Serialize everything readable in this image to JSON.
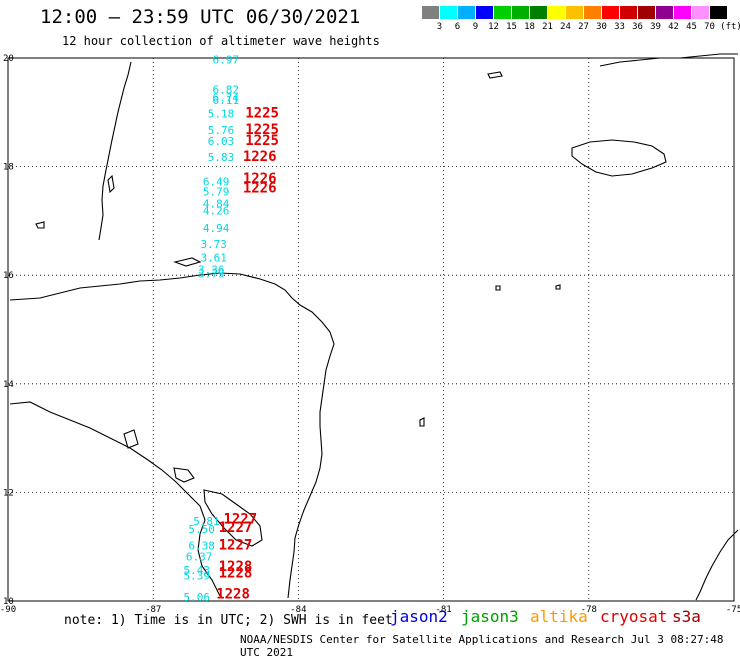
{
  "title": "12:00 – 23:59 UTC 06/30/2021",
  "subtitle": "12 hour collection of altimeter wave heights",
  "legend": {
    "unit": "(ft)",
    "colors": [
      "#808080",
      "#00ffff",
      "#00b0ff",
      "#0000ff",
      "#00d000",
      "#00b000",
      "#008000",
      "#ffff00",
      "#ffc000",
      "#ff8000",
      "#ff0000",
      "#d00000",
      "#a00000",
      "#900090",
      "#ff00ff",
      "#ff90ff",
      "#000000"
    ],
    "labels": [
      "3",
      "6",
      "9",
      "12",
      "15",
      "18",
      "21",
      "24",
      "27",
      "30",
      "33",
      "36",
      "39",
      "42",
      "45",
      "70"
    ]
  },
  "map": {
    "lon_min": -90,
    "lon_max": -75,
    "lat_min": 10,
    "lat_max": 20,
    "lon_ticks": [
      "-90",
      "-87",
      "-84",
      "-81",
      "-78",
      "-75"
    ],
    "lat_ticks": [
      "20",
      "18",
      "16",
      "14",
      "12",
      "10"
    ],
    "wave_color": "#00d8e0",
    "pass_color": "#e00000",
    "wave_heights": [
      {
        "lon": -85.5,
        "lat": 19.9,
        "v": "6.97"
      },
      {
        "lon": -85.5,
        "lat": 19.35,
        "v": "6.82"
      },
      {
        "lon": -85.5,
        "lat": 19.2,
        "v": "6.74"
      },
      {
        "lon": -85.5,
        "lat": 19.15,
        "v": "6.11"
      },
      {
        "lon": -85.6,
        "lat": 18.9,
        "v": "5.18"
      },
      {
        "lon": -85.6,
        "lat": 18.6,
        "v": "5.76"
      },
      {
        "lon": -85.6,
        "lat": 18.4,
        "v": "6.03"
      },
      {
        "lon": -85.6,
        "lat": 18.1,
        "v": "5.83"
      },
      {
        "lon": -85.7,
        "lat": 17.65,
        "v": "6.49"
      },
      {
        "lon": -85.7,
        "lat": 17.47,
        "v": "5.79"
      },
      {
        "lon": -85.7,
        "lat": 17.25,
        "v": "4.84"
      },
      {
        "lon": -85.7,
        "lat": 17.12,
        "v": "4.26"
      },
      {
        "lon": -85.7,
        "lat": 16.8,
        "v": "4.94"
      },
      {
        "lon": -85.75,
        "lat": 16.5,
        "v": "3.73"
      },
      {
        "lon": -85.75,
        "lat": 16.25,
        "v": "3.61"
      },
      {
        "lon": -85.8,
        "lat": 16.03,
        "v": "3.36"
      },
      {
        "lon": -85.8,
        "lat": 15.96,
        "v": "3.79"
      },
      {
        "lon": -85.9,
        "lat": 11.4,
        "v": "5.81"
      },
      {
        "lon": -86.0,
        "lat": 11.25,
        "v": "5.50"
      },
      {
        "lon": -86.0,
        "lat": 10.95,
        "v": "6.38"
      },
      {
        "lon": -86.05,
        "lat": 10.75,
        "v": "6.37"
      },
      {
        "lon": -86.1,
        "lat": 10.5,
        "v": "5.43"
      },
      {
        "lon": -86.1,
        "lat": 10.4,
        "v": "5.39"
      },
      {
        "lon": -86.1,
        "lat": 10.0,
        "v": "5.06"
      }
    ],
    "pass_times": [
      {
        "lon": -84.75,
        "lat": 18.9,
        "v": "1225"
      },
      {
        "lon": -84.75,
        "lat": 18.6,
        "v": "1225"
      },
      {
        "lon": -84.75,
        "lat": 18.4,
        "v": "1225"
      },
      {
        "lon": -84.8,
        "lat": 18.1,
        "v": "1226"
      },
      {
        "lon": -84.8,
        "lat": 17.7,
        "v": "1226"
      },
      {
        "lon": -84.8,
        "lat": 17.52,
        "v": "1226"
      },
      {
        "lon": -85.2,
        "lat": 11.43,
        "v": "1227"
      },
      {
        "lon": -85.3,
        "lat": 11.27,
        "v": "1227"
      },
      {
        "lon": -85.3,
        "lat": 10.95,
        "v": "1227"
      },
      {
        "lon": -85.3,
        "lat": 10.55,
        "v": "1228"
      },
      {
        "lon": -85.3,
        "lat": 10.43,
        "v": "1228"
      },
      {
        "lon": -85.35,
        "lat": 10.05,
        "v": "1228"
      }
    ]
  },
  "note": "note: 1) Time is in UTC; 2) SWH is in feet",
  "satellites": [
    {
      "name": "jason2",
      "color": "#0000e0"
    },
    {
      "name": "jason3",
      "color": "#00a000"
    },
    {
      "name": "altika",
      "color": "#ff9900"
    },
    {
      "name": "cryosat",
      "color": "#e00000"
    },
    {
      "name": "s3a",
      "color": "#a00000"
    }
  ],
  "footer": "NOAA/NESDIS Center for Satellite Applications and Research   Jul  3 08:27:48 UTC 2021"
}
